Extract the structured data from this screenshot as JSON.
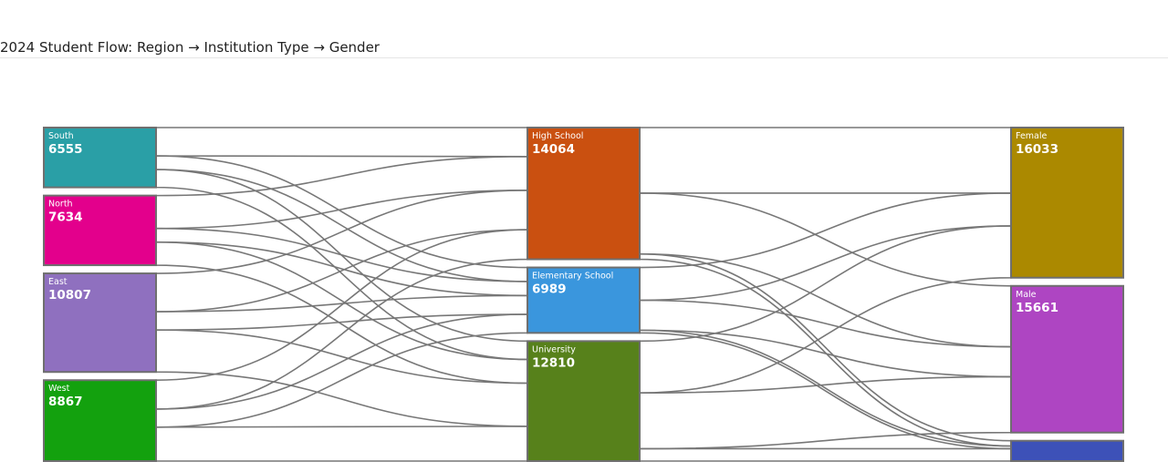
{
  "header": {
    "title": "2024 Student Flow: Region → Institution Type → Gender"
  },
  "diagram": {
    "type": "sankey",
    "columns": [
      [
        "south",
        "north",
        "east",
        "west"
      ],
      [
        "high_school",
        "elementary_school",
        "university"
      ],
      [
        "female",
        "male",
        "other"
      ]
    ],
    "nodes": [
      {
        "id": "south",
        "name": "South",
        "value": "6555",
        "color": "#2a9fa6"
      },
      {
        "id": "north",
        "name": "North",
        "value": "7634",
        "color": "#e3008c"
      },
      {
        "id": "east",
        "name": "East",
        "value": "10807",
        "color": "#8f70bf"
      },
      {
        "id": "west",
        "name": "West",
        "value": "8867",
        "color": "#13a10e"
      },
      {
        "id": "high_school",
        "name": "High School",
        "value": "14064",
        "color": "#ca5010"
      },
      {
        "id": "elementary_school",
        "name": "Elementary School",
        "value": "6989",
        "color": "#3a96dd"
      },
      {
        "id": "university",
        "name": "University",
        "value": "12810",
        "color": "#57811b"
      },
      {
        "id": "female",
        "name": "Female",
        "value": "16033",
        "color": "#ab8900"
      },
      {
        "id": "male",
        "name": "Male",
        "value": "15661",
        "color": "#ae45c2"
      },
      {
        "id": "other",
        "name": "",
        "value": "",
        "color": "#3d51b8"
      }
    ],
    "links": [
      {
        "source": "south",
        "target": "high_school",
        "value": 3100
      },
      {
        "source": "south",
        "target": "elementary_school",
        "value": 1500
      },
      {
        "source": "south",
        "target": "university",
        "value": 1955
      },
      {
        "source": "north",
        "target": "high_school",
        "value": 3600
      },
      {
        "source": "north",
        "target": "elementary_school",
        "value": 1500
      },
      {
        "source": "north",
        "target": "university",
        "value": 2534
      },
      {
        "source": "east",
        "target": "high_school",
        "value": 4200
      },
      {
        "source": "east",
        "target": "elementary_school",
        "value": 2000
      },
      {
        "source": "east",
        "target": "university",
        "value": 4607
      },
      {
        "source": "west",
        "target": "high_school",
        "value": 3164
      },
      {
        "source": "west",
        "target": "elementary_school",
        "value": 1989
      },
      {
        "source": "west",
        "target": "university",
        "value": 3714
      },
      {
        "source": "high_school",
        "target": "female",
        "value": 7000
      },
      {
        "source": "high_school",
        "target": "male",
        "value": 6500
      },
      {
        "source": "high_school",
        "target": "other",
        "value": 564
      },
      {
        "source": "elementary_school",
        "target": "female",
        "value": 3500
      },
      {
        "source": "elementary_school",
        "target": "male",
        "value": 3200
      },
      {
        "source": "elementary_school",
        "target": "other",
        "value": 289
      },
      {
        "source": "university",
        "target": "female",
        "value": 5533
      },
      {
        "source": "university",
        "target": "male",
        "value": 5961
      },
      {
        "source": "university",
        "target": "other",
        "value": 1316
      }
    ]
  }
}
